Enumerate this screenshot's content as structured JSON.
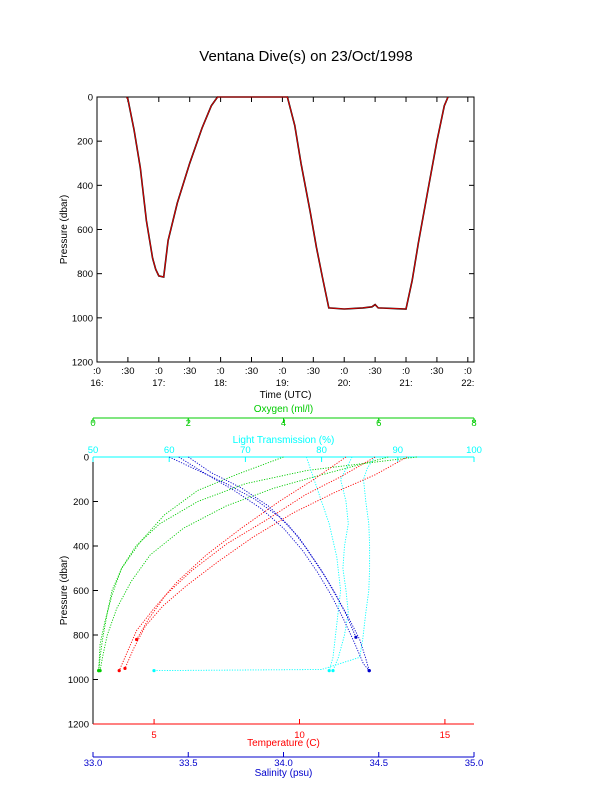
{
  "title": "Ventana Dive(s) on 23/Oct/1998",
  "chart_data": [
    {
      "type": "line",
      "ylabel": "Pressure (dbar)",
      "xlabel": "Time (UTC)",
      "ylim": [
        1200,
        0
      ],
      "yticks": [
        0,
        200,
        400,
        600,
        800,
        1000,
        1200
      ],
      "xrange_hours": [
        16.0,
        22.1
      ],
      "xticks": [
        {
          "t": 16.0,
          "top": ":0",
          "bottom": "16:"
        },
        {
          "t": 16.5,
          "top": ":30",
          "bottom": ""
        },
        {
          "t": 17.0,
          "top": ":0",
          "bottom": "17:"
        },
        {
          "t": 17.5,
          "top": ":30",
          "bottom": ""
        },
        {
          "t": 18.0,
          "top": ":0",
          "bottom": "18:"
        },
        {
          "t": 18.5,
          "top": ":30",
          "bottom": ""
        },
        {
          "t": 19.0,
          "top": ":0",
          "bottom": "19:"
        },
        {
          "t": 19.5,
          "top": ":30",
          "bottom": ""
        },
        {
          "t": 20.0,
          "top": ":0",
          "bottom": "20:"
        },
        {
          "t": 20.5,
          "top": ":30",
          "bottom": ""
        },
        {
          "t": 21.0,
          "top": ":0",
          "bottom": "21:"
        },
        {
          "t": 21.5,
          "top": ":30",
          "bottom": ""
        },
        {
          "t": 22.0,
          "top": ":0",
          "bottom": "22:"
        }
      ],
      "series": [
        {
          "color": "#000000",
          "points": [
            [
              16.48,
              0
            ],
            [
              16.5,
              10
            ],
            [
              16.6,
              150
            ],
            [
              16.7,
              320
            ],
            [
              16.8,
              560
            ],
            [
              16.9,
              730
            ],
            [
              16.95,
              780
            ],
            [
              17.0,
              810
            ],
            [
              17.08,
              815
            ],
            [
              17.15,
              650
            ],
            [
              17.3,
              480
            ],
            [
              17.5,
              300
            ],
            [
              17.7,
              140
            ],
            [
              17.85,
              40
            ],
            [
              17.95,
              0
            ],
            [
              18.0,
              0
            ],
            [
              18.5,
              0
            ],
            [
              19.0,
              0
            ],
            [
              19.08,
              0
            ],
            [
              19.2,
              130
            ],
            [
              19.3,
              300
            ],
            [
              19.45,
              520
            ],
            [
              19.55,
              680
            ],
            [
              19.65,
              820
            ],
            [
              19.75,
              955
            ],
            [
              20.0,
              960
            ],
            [
              20.3,
              955
            ],
            [
              20.45,
              950
            ],
            [
              20.5,
              940
            ],
            [
              20.55,
              955
            ],
            [
              21.0,
              960
            ],
            [
              21.1,
              830
            ],
            [
              21.2,
              660
            ],
            [
              21.35,
              430
            ],
            [
              21.5,
              200
            ],
            [
              21.62,
              40
            ],
            [
              21.68,
              0
            ]
          ]
        },
        {
          "color": "#ff0000",
          "points": [
            [
              16.48,
              0
            ],
            [
              16.5,
              10
            ],
            [
              16.6,
              150
            ],
            [
              16.7,
              320
            ],
            [
              16.8,
              560
            ],
            [
              16.9,
              730
            ],
            [
              16.95,
              780
            ],
            [
              17.0,
              810
            ],
            [
              17.08,
              815
            ],
            [
              17.15,
              650
            ],
            [
              17.3,
              480
            ],
            [
              17.5,
              300
            ],
            [
              17.7,
              140
            ],
            [
              17.85,
              40
            ],
            [
              17.95,
              0
            ],
            [
              18.0,
              0
            ],
            [
              18.5,
              0
            ],
            [
              19.0,
              0
            ],
            [
              19.08,
              0
            ],
            [
              19.2,
              130
            ],
            [
              19.3,
              300
            ],
            [
              19.45,
              520
            ],
            [
              19.55,
              680
            ],
            [
              19.65,
              820
            ],
            [
              19.75,
              955
            ],
            [
              20.0,
              960
            ],
            [
              20.3,
              955
            ],
            [
              20.45,
              950
            ],
            [
              20.5,
              940
            ],
            [
              20.55,
              955
            ],
            [
              21.0,
              960
            ],
            [
              21.1,
              830
            ],
            [
              21.2,
              660
            ],
            [
              21.35,
              430
            ],
            [
              21.5,
              200
            ],
            [
              21.62,
              40
            ],
            [
              21.68,
              0
            ]
          ]
        }
      ]
    },
    {
      "type": "scatter",
      "ylabel": "Pressure (dbar)",
      "ylim": [
        1200,
        0
      ],
      "yticks": [
        0,
        200,
        400,
        600,
        800,
        1000,
        1200
      ],
      "axes": [
        {
          "label": "Oxygen (ml/l)",
          "position": "top",
          "color": "#00cc00",
          "range": [
            0,
            8
          ],
          "ticks": [
            0,
            2,
            4,
            6,
            8
          ],
          "ticklabels": [
            "0",
            "2",
            "4",
            "6",
            "8"
          ]
        },
        {
          "label": "Light Transmission (%)",
          "position": "top",
          "color": "#00ffff",
          "range": [
            50,
            100
          ],
          "ticks": [
            50,
            60,
            70,
            80,
            90,
            100
          ],
          "ticklabels": [
            "50",
            "60",
            "70",
            "80",
            "90",
            "100"
          ]
        },
        {
          "label": "Temperature (C)",
          "position": "bottom",
          "color": "#ff0000",
          "range": [
            2.9,
            16.0
          ],
          "ticks": [
            5,
            10,
            15
          ],
          "ticklabels": [
            "5",
            "10",
            "15"
          ]
        },
        {
          "label": "Salinity (psu)",
          "position": "bottom",
          "color": "#0000cc",
          "range": [
            33.0,
            35.0
          ],
          "ticks": [
            33.0,
            33.5,
            34.0,
            34.5,
            35.0
          ],
          "ticklabels": [
            "33.0",
            "33.5",
            "34.0",
            "34.5",
            "35.0"
          ]
        }
      ],
      "series": [
        {
          "axis": 0,
          "color": "#00cc00",
          "profiles": [
            [
              [
                6.8,
                0
              ],
              [
                4.5,
                60
              ],
              [
                3.2,
                120
              ],
              [
                2.2,
                200
              ],
              [
                1.4,
                300
              ],
              [
                0.9,
                400
              ],
              [
                0.6,
                500
              ],
              [
                0.4,
                600
              ],
              [
                0.3,
                700
              ],
              [
                0.2,
                820
              ],
              [
                0.15,
                900
              ],
              [
                0.12,
                960
              ]
            ],
            [
              [
                6.2,
                0
              ],
              [
                4.8,
                80
              ],
              [
                3.8,
                140
              ],
              [
                2.8,
                220
              ],
              [
                1.9,
                320
              ],
              [
                1.2,
                440
              ],
              [
                0.8,
                560
              ],
              [
                0.5,
                680
              ],
              [
                0.3,
                800
              ],
              [
                0.2,
                900
              ],
              [
                0.15,
                960
              ]
            ],
            [
              [
                4.0,
                0
              ],
              [
                3.0,
                80
              ],
              [
                2.2,
                150
              ],
              [
                1.5,
                260
              ],
              [
                1.0,
                380
              ],
              [
                0.6,
                500
              ],
              [
                0.4,
                620
              ],
              [
                0.25,
                740
              ],
              [
                0.15,
                840
              ],
              [
                0.12,
                960
              ]
            ]
          ]
        },
        {
          "axis": 1,
          "color": "#00ffff",
          "profiles": [
            [
              [
                87,
                0
              ],
              [
                86,
                50
              ],
              [
                85.5,
                100
              ],
              [
                85.8,
                200
              ],
              [
                86.2,
                300
              ],
              [
                86.3,
                400
              ],
              [
                86.3,
                500
              ],
              [
                86.2,
                600
              ],
              [
                85.8,
                700
              ],
              [
                85.4,
                820
              ],
              [
                85.0,
                900
              ],
              [
                80,
                955
              ],
              [
                66,
                958
              ],
              [
                58,
                960
              ]
            ],
            [
              [
                84,
                0
              ],
              [
                82.5,
                100
              ],
              [
                83.2,
                200
              ],
              [
                83.5,
                300
              ],
              [
                83.0,
                400
              ],
              [
                82.8,
                500
              ],
              [
                83.2,
                600
              ],
              [
                83.5,
                700
              ],
              [
                83.0,
                800
              ],
              [
                82.2,
                900
              ],
              [
                81.5,
                960
              ]
            ],
            [
              [
                78,
                0
              ],
              [
                79.5,
                150
              ],
              [
                81,
                300
              ],
              [
                82,
                450
              ],
              [
                82.5,
                600
              ],
              [
                82.0,
                750
              ],
              [
                81.5,
                900
              ],
              [
                81,
                960
              ]
            ]
          ]
        },
        {
          "axis": 2,
          "color": "#ff0000",
          "profiles": [
            [
              [
                13.7,
                0
              ],
              [
                12.6,
                80
              ],
              [
                11.2,
                160
              ],
              [
                9.8,
                250
              ],
              [
                8.4,
                360
              ],
              [
                7.2,
                470
              ],
              [
                6.1,
                580
              ],
              [
                5.3,
                670
              ],
              [
                4.7,
                760
              ],
              [
                4.3,
                860
              ],
              [
                4.0,
                950
              ]
            ],
            [
              [
                12.6,
                0
              ],
              [
                11.4,
                90
              ],
              [
                10.2,
                170
              ],
              [
                8.9,
                280
              ],
              [
                7.5,
                390
              ],
              [
                6.3,
                510
              ],
              [
                5.4,
                620
              ],
              [
                4.8,
                730
              ],
              [
                4.4,
                820
              ]
            ],
            [
              [
                11.6,
                0
              ],
              [
                10.5,
                100
              ],
              [
                9.3,
                200
              ],
              [
                8.0,
                320
              ],
              [
                6.8,
                440
              ],
              [
                5.8,
                560
              ],
              [
                5.0,
                680
              ],
              [
                4.4,
                780
              ],
              [
                4.0,
                900
              ],
              [
                3.8,
                960
              ]
            ]
          ]
        },
        {
          "axis": 3,
          "color": "#0000cc",
          "profiles": [
            [
              [
                33.4,
                0
              ],
              [
                33.55,
                60
              ],
              [
                33.7,
                120
              ],
              [
                33.85,
                190
              ],
              [
                33.98,
                270
              ],
              [
                34.08,
                360
              ],
              [
                34.15,
                450
              ],
              [
                34.22,
                540
              ],
              [
                34.28,
                630
              ],
              [
                34.34,
                720
              ],
              [
                34.4,
                820
              ],
              [
                34.43,
                900
              ],
              [
                34.45,
                960
              ]
            ],
            [
              [
                33.5,
                0
              ],
              [
                33.62,
                70
              ],
              [
                33.78,
                140
              ],
              [
                33.92,
                220
              ],
              [
                34.03,
                310
              ],
              [
                34.12,
                410
              ],
              [
                34.2,
                510
              ],
              [
                34.27,
                610
              ],
              [
                34.33,
                710
              ],
              [
                34.38,
                810
              ]
            ],
            [
              [
                33.45,
                0
              ],
              [
                33.6,
                80
              ],
              [
                33.74,
                150
              ],
              [
                33.88,
                230
              ],
              [
                34.0,
                320
              ],
              [
                34.1,
                420
              ],
              [
                34.18,
                520
              ],
              [
                34.25,
                620
              ],
              [
                34.31,
                720
              ],
              [
                34.37,
                830
              ],
              [
                34.42,
                930
              ],
              [
                34.45,
                960
              ]
            ]
          ]
        }
      ]
    }
  ]
}
